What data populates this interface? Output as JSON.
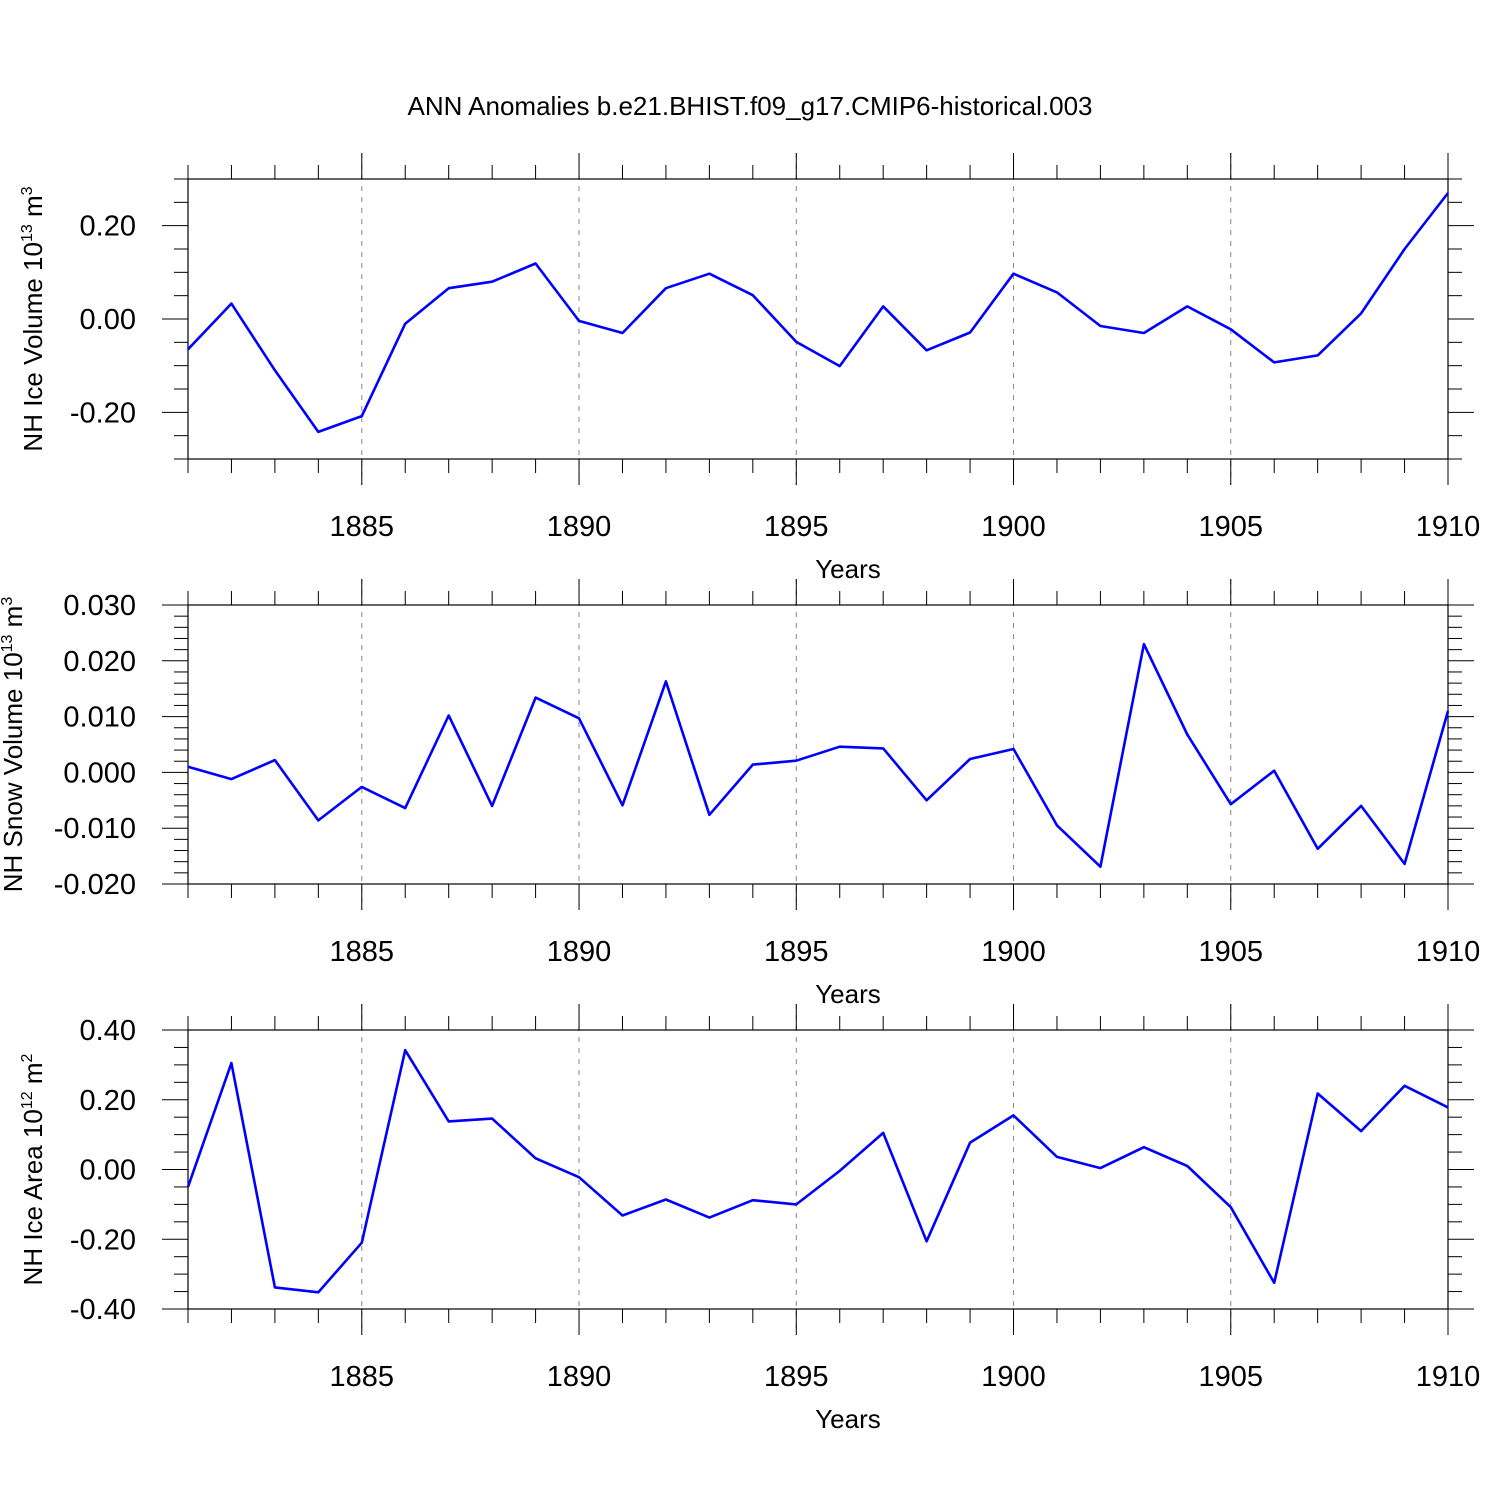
{
  "chart_data": {
    "title": "ANN Anomalies b.e21.BHIST.f09_g17.CMIP6-historical.003",
    "color": "#0000ff",
    "panels": [
      {
        "type": "line",
        "ylabel_main": "NH Ice Volume 10",
        "ylabel_exp": "13",
        "ylabel_unit": " m",
        "ylabel_unit_exp": "3",
        "xlabel": "Years",
        "xlim": [
          1881,
          1910
        ],
        "ylim": [
          -0.3,
          0.3
        ],
        "y_major_ticks": [
          -0.2,
          0.0,
          0.2
        ],
        "y_tick_labels": [
          "-0.20",
          "0.00",
          "0.20"
        ],
        "y_minor_step": 0.05,
        "x": [
          1881,
          1882,
          1883,
          1884,
          1885,
          1886,
          1887,
          1888,
          1889,
          1890,
          1891,
          1892,
          1893,
          1894,
          1895,
          1896,
          1897,
          1898,
          1899,
          1900,
          1901,
          1902,
          1903,
          1904,
          1905,
          1906,
          1907,
          1908,
          1909,
          1910
        ],
        "values": [
          -0.065,
          0.033,
          -0.11,
          -0.242,
          -0.208,
          -0.01,
          0.066,
          0.08,
          0.119,
          -0.004,
          -0.03,
          0.066,
          0.097,
          0.051,
          -0.049,
          -0.101,
          0.027,
          -0.067,
          -0.029,
          0.097,
          0.057,
          -0.015,
          -0.03,
          0.027,
          -0.022,
          -0.093,
          -0.078,
          0.012,
          0.15,
          0.27
        ]
      },
      {
        "type": "line",
        "ylabel_main": "NH Snow Volume 10",
        "ylabel_exp": "13",
        "ylabel_unit": " m",
        "ylabel_unit_exp": "3",
        "xlabel": "Years",
        "xlim": [
          1881,
          1910
        ],
        "ylim": [
          -0.02,
          0.03
        ],
        "y_major_ticks": [
          -0.02,
          -0.01,
          0.0,
          0.01,
          0.02,
          0.03
        ],
        "y_tick_labels": [
          "-0.020",
          "-0.010",
          "0.000",
          "0.010",
          "0.020",
          "0.030"
        ],
        "y_minor_step": 0.002,
        "x": [
          1881,
          1882,
          1883,
          1884,
          1885,
          1886,
          1887,
          1888,
          1889,
          1890,
          1891,
          1892,
          1893,
          1894,
          1895,
          1896,
          1897,
          1898,
          1899,
          1900,
          1901,
          1902,
          1903,
          1904,
          1905,
          1906,
          1907,
          1908,
          1909,
          1910
        ],
        "values": [
          0.001,
          -0.0012,
          0.0022,
          -0.0086,
          -0.0026,
          -0.0064,
          0.0102,
          -0.006,
          0.0134,
          0.0097,
          -0.0059,
          0.0163,
          -0.0076,
          0.0014,
          0.0021,
          0.0046,
          0.0043,
          -0.005,
          0.0024,
          0.0042,
          -0.0095,
          -0.0169,
          0.023,
          0.0068,
          -0.0057,
          0.0003,
          -0.0137,
          -0.006,
          -0.0164,
          0.011
        ]
      },
      {
        "type": "line",
        "ylabel_main": "NH Ice Area 10",
        "ylabel_exp": "12",
        "ylabel_unit": " m",
        "ylabel_unit_exp": "2",
        "xlabel": "Years",
        "xlim": [
          1881,
          1910
        ],
        "ylim": [
          -0.4,
          0.4
        ],
        "y_major_ticks": [
          -0.4,
          -0.2,
          0.0,
          0.2,
          0.4
        ],
        "y_tick_labels": [
          "-0.40",
          "-0.20",
          "0.00",
          "0.20",
          "0.40"
        ],
        "y_minor_step": 0.05,
        "x": [
          1881,
          1882,
          1883,
          1884,
          1885,
          1886,
          1887,
          1888,
          1889,
          1890,
          1891,
          1892,
          1893,
          1894,
          1895,
          1896,
          1897,
          1898,
          1899,
          1900,
          1901,
          1902,
          1903,
          1904,
          1905,
          1906,
          1907,
          1908,
          1909,
          1910
        ],
        "values": [
          -0.05,
          0.305,
          -0.338,
          -0.352,
          -0.21,
          0.342,
          0.138,
          0.146,
          0.032,
          -0.022,
          -0.132,
          -0.086,
          -0.138,
          -0.088,
          -0.1,
          -0.004,
          0.105,
          -0.206,
          0.077,
          0.155,
          0.036,
          0.004,
          0.064,
          0.01,
          -0.108,
          -0.325,
          0.218,
          0.11,
          0.24,
          0.178
        ]
      }
    ],
    "x_major_ticks": [
      1885,
      1890,
      1895,
      1900,
      1905,
      1910
    ],
    "x_tick_labels": [
      "1885",
      "1890",
      "1895",
      "1900",
      "1905",
      "1910"
    ],
    "x_gridlines": [
      1885,
      1890,
      1895,
      1900,
      1905
    ],
    "grid": "dashed vertical at major x ticks"
  }
}
